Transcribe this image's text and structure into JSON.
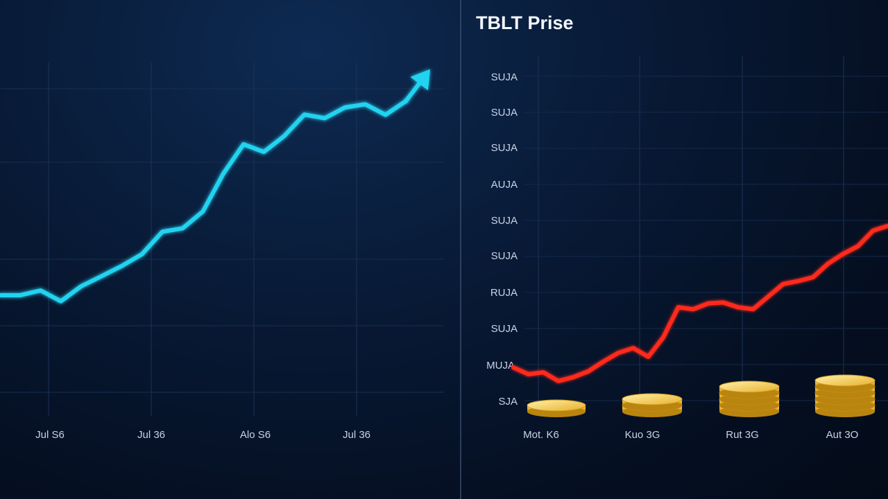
{
  "chart_data": [
    {
      "type": "line",
      "title": "",
      "xlabel": "",
      "ylabel": "",
      "grid": true,
      "color": "#22d3f0",
      "x_tick_labels": [
        "Jul S6",
        "Jul 36",
        "Alo S6",
        "Jul 36"
      ],
      "series": [
        {
          "values": [
            45.8,
            45.8,
            47.6,
            43.5,
            49.2,
            53.0,
            56.9,
            61.4,
            69.9,
            71.2,
            77.6,
            91.9,
            103.1,
            100.2,
            106.2,
            114.4,
            113.0,
            117.1,
            118.3,
            114.3,
            119.5
          ]
        }
      ],
      "has_trend_arrow": true
    },
    {
      "type": "line",
      "title": "TBLT Prise",
      "xlabel": "",
      "ylabel": "",
      "grid": true,
      "color": "#ff2a1e",
      "y_tick_labels": [
        "SUJA",
        "SUJA",
        "SUJA",
        "AUJA",
        "SUJA",
        "SUJA",
        "RUJA",
        "SUJA",
        "MUJA",
        "SJA"
      ],
      "x_tick_labels": [
        "Mot. K6",
        "Kuo 3G",
        "Rut 3G",
        "Aut 3O"
      ],
      "series": [
        {
          "values": [
            1.7,
            1.0,
            1.2,
            0.3,
            0.7,
            1.3,
            2.3,
            3.2,
            3.7,
            2.8,
            4.8,
            7.9,
            7.7,
            8.3,
            8.4,
            7.9,
            7.7,
            9.0,
            10.3,
            10.6,
            11.0,
            12.4,
            13.4,
            14.2,
            15.8,
            16.3
          ]
        }
      ],
      "coin_stacks": [
        1,
        2,
        4,
        5
      ]
    }
  ]
}
